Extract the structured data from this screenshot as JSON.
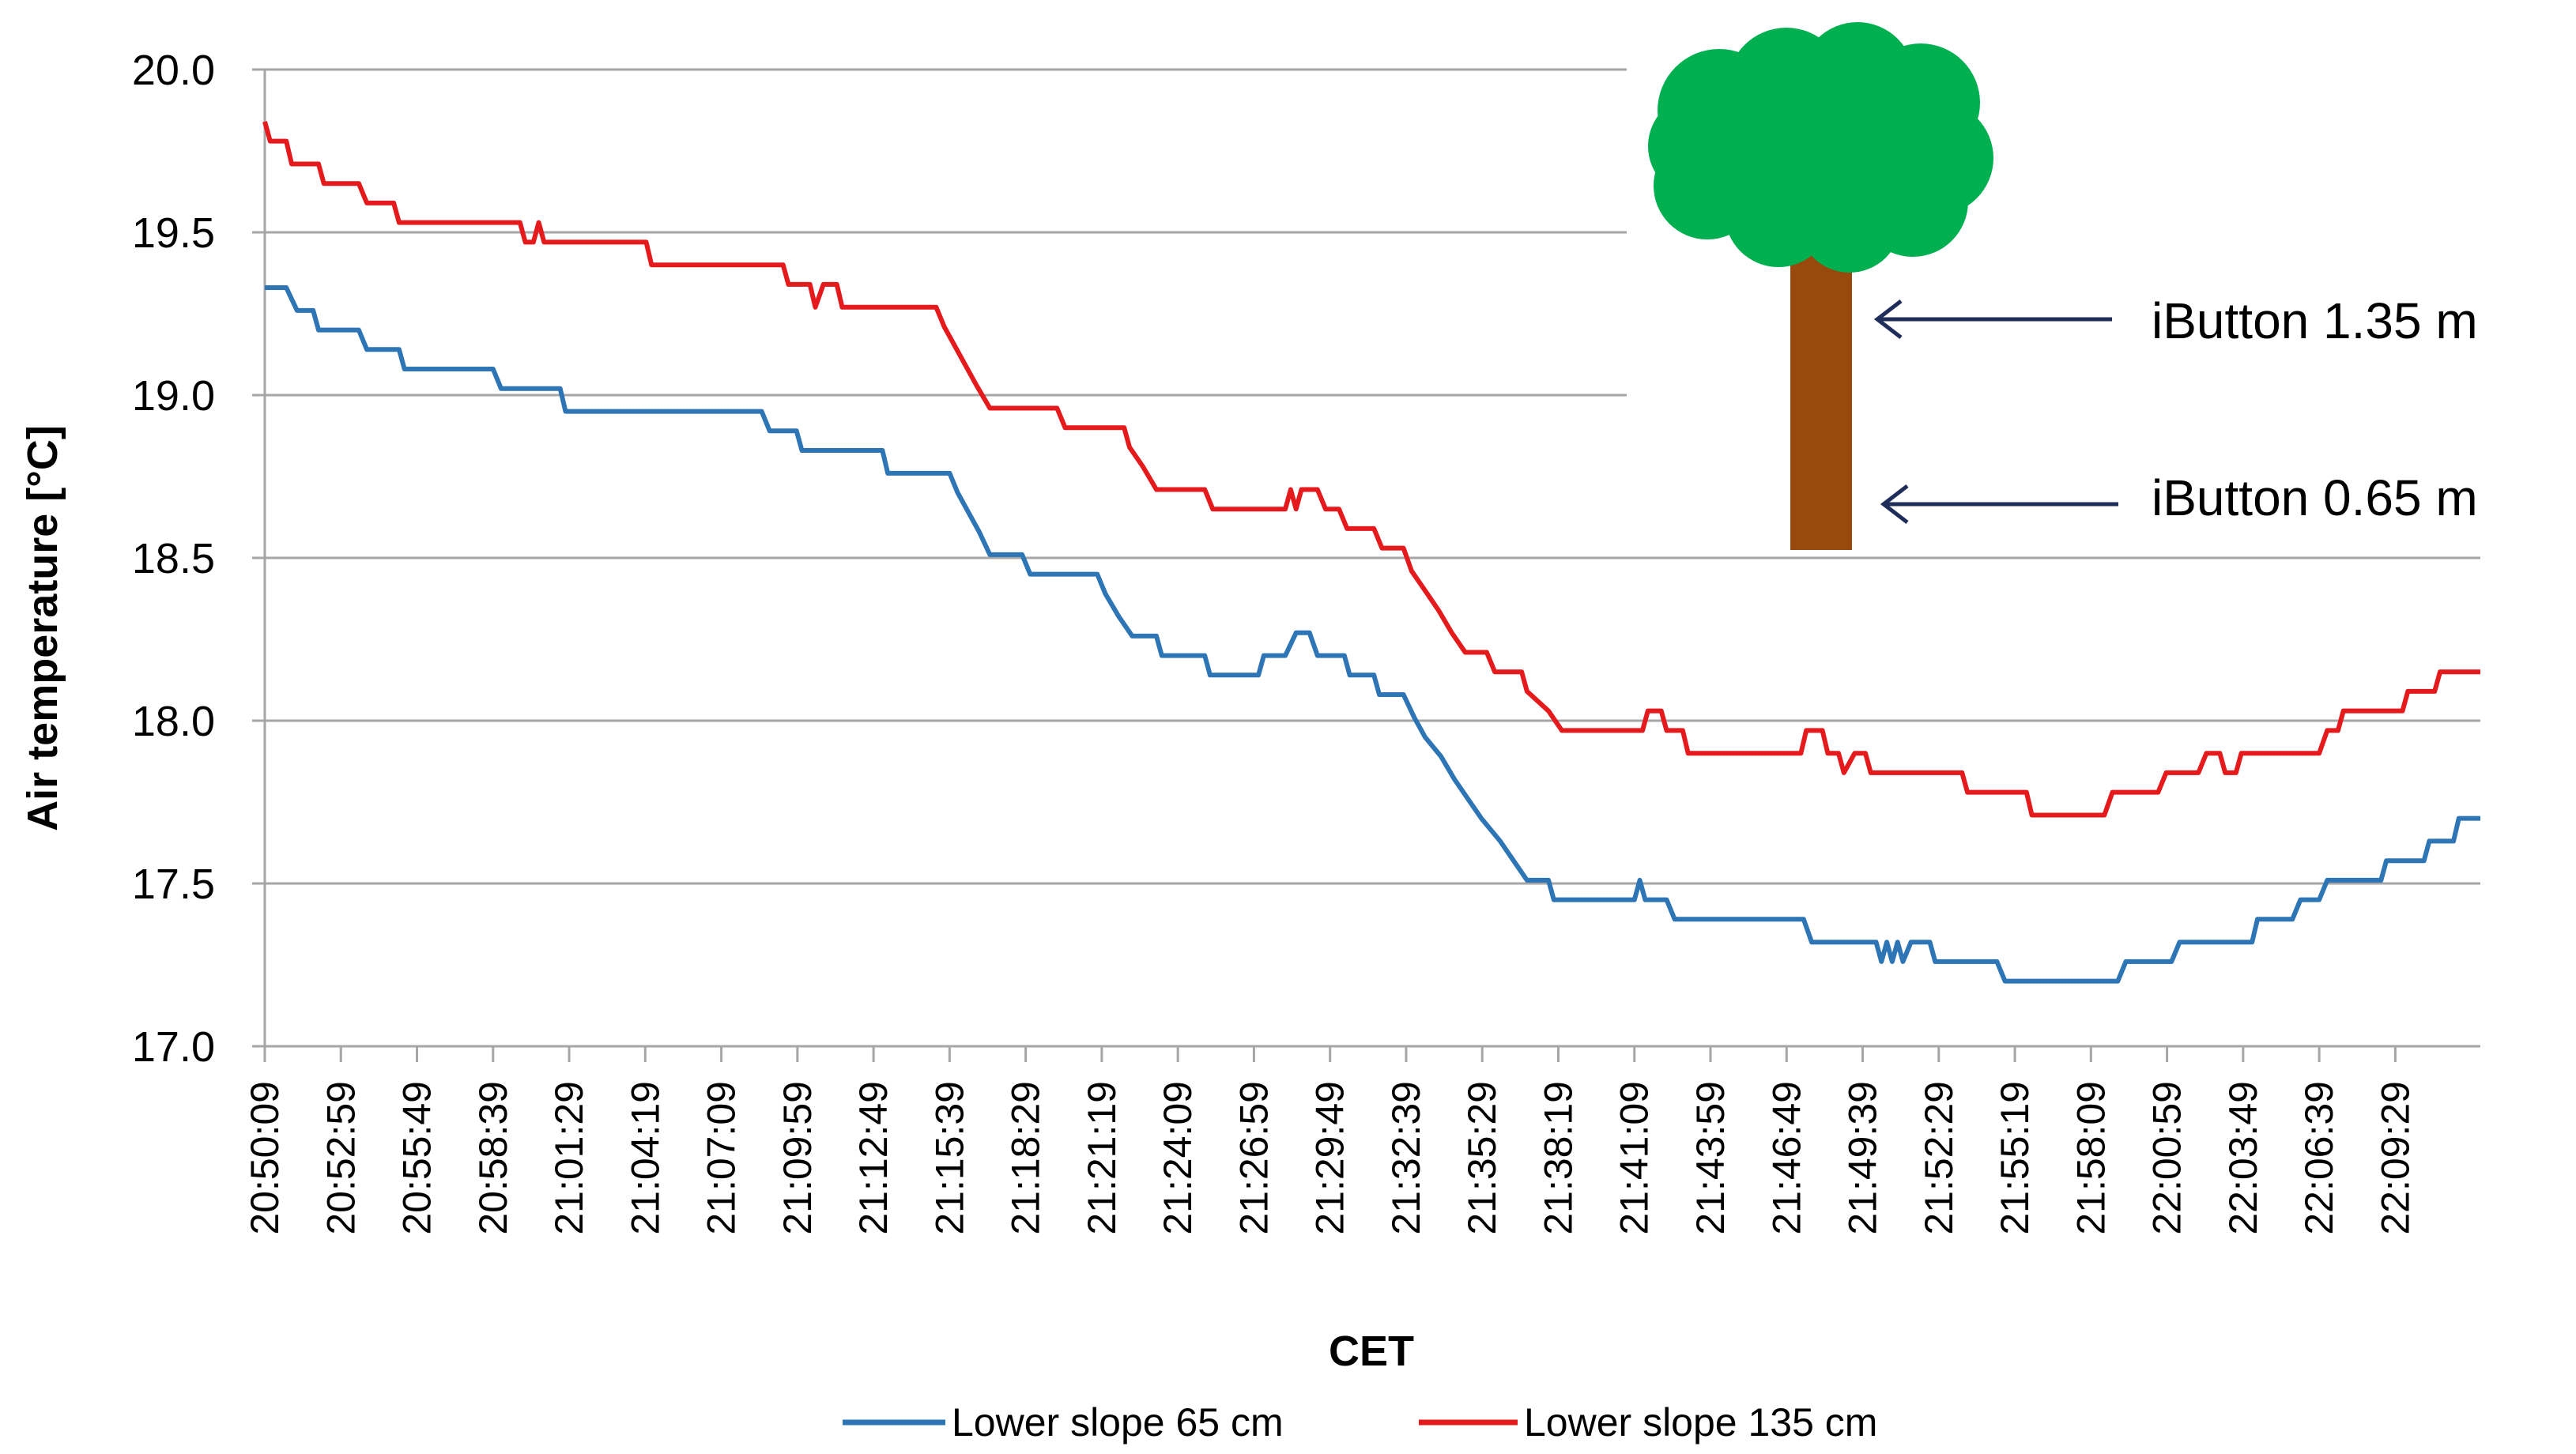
{
  "chart_data": {
    "type": "line",
    "title": "",
    "xlabel": "CET",
    "ylabel": "Air temperature [°C]",
    "ylim": [
      17.0,
      20.0
    ],
    "yticks": [
      "17.0",
      "17.5",
      "18.0",
      "18.5",
      "19.0",
      "19.5",
      "20.0"
    ],
    "grid": true,
    "legend_position": "bottom",
    "x_tick_labels": [
      "20:50:09",
      "20:52:59",
      "20:55:49",
      "20:58:39",
      "21:01:29",
      "21:04:19",
      "21:07:09",
      "21:09:59",
      "21:12:49",
      "21:15:39",
      "21:18:29",
      "21:21:19",
      "21:24:09",
      "21:26:59",
      "21:29:49",
      "21:32:39",
      "21:35:29",
      "21:38:19",
      "21:41:09",
      "21:43:59",
      "21:46:49",
      "21:49:39",
      "21:52:29",
      "21:55:19",
      "21:58:09",
      "22:00:59",
      "22:03:49",
      "22:06:39",
      "22:09:29"
    ],
    "x_range_minutes": [
      0,
      82.5
    ],
    "series": [
      {
        "name": "Lower slope 65 cm",
        "color": "#2E75B6",
        "points": [
          [
            0,
            19.33
          ],
          [
            0.8,
            19.33
          ],
          [
            1.2,
            19.26
          ],
          [
            1.8,
            19.26
          ],
          [
            2,
            19.2
          ],
          [
            3.5,
            19.2
          ],
          [
            3.8,
            19.14
          ],
          [
            5,
            19.14
          ],
          [
            5.2,
            19.08
          ],
          [
            8.5,
            19.08
          ],
          [
            8.8,
            19.02
          ],
          [
            11,
            19.02
          ],
          [
            11.2,
            18.95
          ],
          [
            18.5,
            18.95
          ],
          [
            18.8,
            18.89
          ],
          [
            19.8,
            18.89
          ],
          [
            20,
            18.83
          ],
          [
            23,
            18.83
          ],
          [
            23.2,
            18.76
          ],
          [
            25.5,
            18.76
          ],
          [
            25.8,
            18.7
          ],
          [
            26.2,
            18.64
          ],
          [
            26.6,
            18.58
          ],
          [
            27,
            18.51
          ],
          [
            28.2,
            18.51
          ],
          [
            28.5,
            18.45
          ],
          [
            31,
            18.45
          ],
          [
            31.3,
            18.39
          ],
          [
            31.8,
            18.32
          ],
          [
            32.3,
            18.26
          ],
          [
            33.2,
            18.26
          ],
          [
            33.4,
            18.2
          ],
          [
            35,
            18.2
          ],
          [
            35.2,
            18.14
          ],
          [
            37,
            18.14
          ],
          [
            37.2,
            18.2
          ],
          [
            38,
            18.2
          ],
          [
            38.4,
            18.27
          ],
          [
            38.9,
            18.27
          ],
          [
            39.2,
            18.2
          ],
          [
            40.2,
            18.2
          ],
          [
            40.4,
            18.14
          ],
          [
            41.3,
            18.14
          ],
          [
            41.5,
            18.08
          ],
          [
            42.4,
            18.08
          ],
          [
            42.8,
            18.01
          ],
          [
            43.2,
            17.95
          ],
          [
            43.8,
            17.89
          ],
          [
            44.3,
            17.82
          ],
          [
            44.8,
            17.76
          ],
          [
            45.3,
            17.7
          ],
          [
            46,
            17.63
          ],
          [
            46.5,
            17.57
          ],
          [
            47,
            17.51
          ],
          [
            47.8,
            17.51
          ],
          [
            48,
            17.45
          ],
          [
            51,
            17.45
          ],
          [
            51.2,
            17.51
          ],
          [
            51.4,
            17.45
          ],
          [
            52.2,
            17.45
          ],
          [
            52.5,
            17.39
          ],
          [
            57.3,
            17.39
          ],
          [
            57.6,
            17.32
          ],
          [
            60,
            17.32
          ],
          [
            60.2,
            17.26
          ],
          [
            60.4,
            17.32
          ],
          [
            60.6,
            17.26
          ],
          [
            60.8,
            17.32
          ],
          [
            61,
            17.26
          ],
          [
            61.3,
            17.32
          ],
          [
            62,
            17.32
          ],
          [
            62.2,
            17.26
          ],
          [
            64.5,
            17.26
          ],
          [
            64.8,
            17.2
          ],
          [
            69,
            17.2
          ],
          [
            69.3,
            17.26
          ],
          [
            71,
            17.26
          ],
          [
            71.3,
            17.32
          ],
          [
            74,
            17.32
          ],
          [
            74.2,
            17.39
          ],
          [
            75.5,
            17.39
          ],
          [
            75.8,
            17.45
          ],
          [
            76.5,
            17.45
          ],
          [
            76.8,
            17.51
          ],
          [
            78.8,
            17.51
          ],
          [
            79,
            17.57
          ],
          [
            80.4,
            17.57
          ],
          [
            80.6,
            17.63
          ],
          [
            81.5,
            17.63
          ],
          [
            81.7,
            17.7
          ],
          [
            82.5,
            17.7
          ]
        ]
      },
      {
        "name": "Lower slope 135 cm",
        "color": "#E41A1C",
        "points": [
          [
            0,
            19.84
          ],
          [
            0.2,
            19.78
          ],
          [
            0.8,
            19.78
          ],
          [
            1,
            19.71
          ],
          [
            2,
            19.71
          ],
          [
            2.2,
            19.65
          ],
          [
            3.5,
            19.65
          ],
          [
            3.8,
            19.59
          ],
          [
            4.8,
            19.59
          ],
          [
            5,
            19.53
          ],
          [
            9.5,
            19.53
          ],
          [
            9.7,
            19.47
          ],
          [
            10,
            19.47
          ],
          [
            10.2,
            19.53
          ],
          [
            10.4,
            19.47
          ],
          [
            14.2,
            19.47
          ],
          [
            14.4,
            19.4
          ],
          [
            19.3,
            19.4
          ],
          [
            19.5,
            19.34
          ],
          [
            20.3,
            19.34
          ],
          [
            20.5,
            19.27
          ],
          [
            20.8,
            19.34
          ],
          [
            21.3,
            19.34
          ],
          [
            21.5,
            19.27
          ],
          [
            25,
            19.27
          ],
          [
            25.3,
            19.21
          ],
          [
            25.7,
            19.15
          ],
          [
            26.1,
            19.09
          ],
          [
            26.5,
            19.03
          ],
          [
            27,
            18.96
          ],
          [
            29.5,
            18.96
          ],
          [
            29.8,
            18.9
          ],
          [
            32,
            18.9
          ],
          [
            32.2,
            18.84
          ],
          [
            32.7,
            18.78
          ],
          [
            33.2,
            18.71
          ],
          [
            35,
            18.71
          ],
          [
            35.3,
            18.65
          ],
          [
            38,
            18.65
          ],
          [
            38.2,
            18.71
          ],
          [
            38.4,
            18.65
          ],
          [
            38.6,
            18.71
          ],
          [
            39.2,
            18.71
          ],
          [
            39.5,
            18.65
          ],
          [
            40,
            18.65
          ],
          [
            40.3,
            18.59
          ],
          [
            41.3,
            18.59
          ],
          [
            41.6,
            18.53
          ],
          [
            42.4,
            18.53
          ],
          [
            42.7,
            18.46
          ],
          [
            43.2,
            18.4
          ],
          [
            43.7,
            18.34
          ],
          [
            44.2,
            18.27
          ],
          [
            44.7,
            18.21
          ],
          [
            45.5,
            18.21
          ],
          [
            45.8,
            18.15
          ],
          [
            46.8,
            18.15
          ],
          [
            47,
            18.09
          ],
          [
            47.8,
            18.03
          ],
          [
            48.3,
            17.97
          ],
          [
            51.3,
            17.97
          ],
          [
            51.5,
            18.03
          ],
          [
            52,
            18.03
          ],
          [
            52.2,
            17.97
          ],
          [
            52.8,
            17.97
          ],
          [
            53,
            17.9
          ],
          [
            57.2,
            17.9
          ],
          [
            57.4,
            17.97
          ],
          [
            58,
            17.97
          ],
          [
            58.2,
            17.9
          ],
          [
            58.6,
            17.9
          ],
          [
            58.8,
            17.84
          ],
          [
            59.2,
            17.9
          ],
          [
            59.6,
            17.9
          ],
          [
            59.8,
            17.84
          ],
          [
            63.2,
            17.84
          ],
          [
            63.4,
            17.78
          ],
          [
            65.6,
            17.78
          ],
          [
            65.8,
            17.71
          ],
          [
            68.5,
            17.71
          ],
          [
            68.8,
            17.78
          ],
          [
            70.5,
            17.78
          ],
          [
            70.8,
            17.84
          ],
          [
            72,
            17.84
          ],
          [
            72.3,
            17.9
          ],
          [
            72.8,
            17.9
          ],
          [
            73,
            17.84
          ],
          [
            73.4,
            17.84
          ],
          [
            73.6,
            17.9
          ],
          [
            76.5,
            17.9
          ],
          [
            76.8,
            17.97
          ],
          [
            77.2,
            17.97
          ],
          [
            77.4,
            18.03
          ],
          [
            79.6,
            18.03
          ],
          [
            79.8,
            18.09
          ],
          [
            80.8,
            18.09
          ],
          [
            81,
            18.15
          ],
          [
            82.5,
            18.15
          ]
        ]
      }
    ],
    "annotations": [
      {
        "text": "iButton 1.35 m"
      },
      {
        "text": "iButton 0.65 m"
      }
    ]
  }
}
